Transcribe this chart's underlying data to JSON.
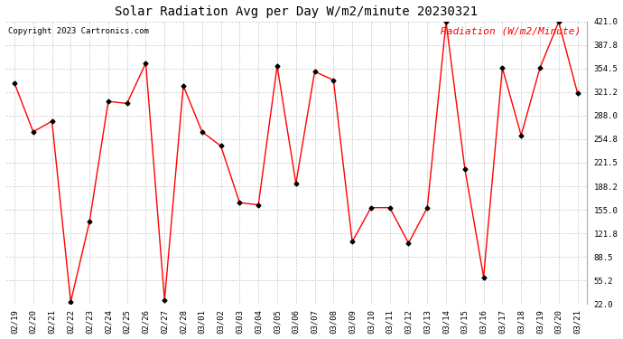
{
  "title": "Solar Radiation Avg per Day W/m2/minute 20230321",
  "copyright": "Copyright 2023 Cartronics.com",
  "legend_label": "Radiation (W/m2/Minute)",
  "dates": [
    "02/19",
    "02/20",
    "02/21",
    "02/22",
    "02/23",
    "02/24",
    "02/25",
    "02/26",
    "02/27",
    "02/28",
    "03/01",
    "03/02",
    "03/03",
    "03/04",
    "03/05",
    "03/06",
    "03/07",
    "03/08",
    "03/09",
    "03/10",
    "03/11",
    "03/12",
    "03/13",
    "03/14",
    "03/15",
    "03/16",
    "03/17",
    "03/18",
    "03/19",
    "03/20",
    "03/21"
  ],
  "values": [
    334,
    265,
    280,
    25,
    138,
    308,
    305,
    362,
    27,
    330,
    265,
    245,
    165,
    162,
    358,
    192,
    350,
    338,
    110,
    158,
    158,
    108,
    158,
    420,
    213,
    60,
    355,
    260,
    355,
    420,
    320
  ],
  "ylim": [
    22.0,
    421.0
  ],
  "yticks": [
    22.0,
    55.2,
    88.5,
    121.8,
    155.0,
    188.2,
    221.5,
    254.8,
    288.0,
    321.2,
    354.5,
    387.8,
    421.0
  ],
  "line_color": "red",
  "marker": "D",
  "marker_color": "black",
  "marker_size": 2.5,
  "grid_color": "#c8c8c8",
  "background_color": "white",
  "title_fontsize": 10,
  "copyright_fontsize": 6.5,
  "legend_fontsize": 8,
  "tick_fontsize": 6.5
}
